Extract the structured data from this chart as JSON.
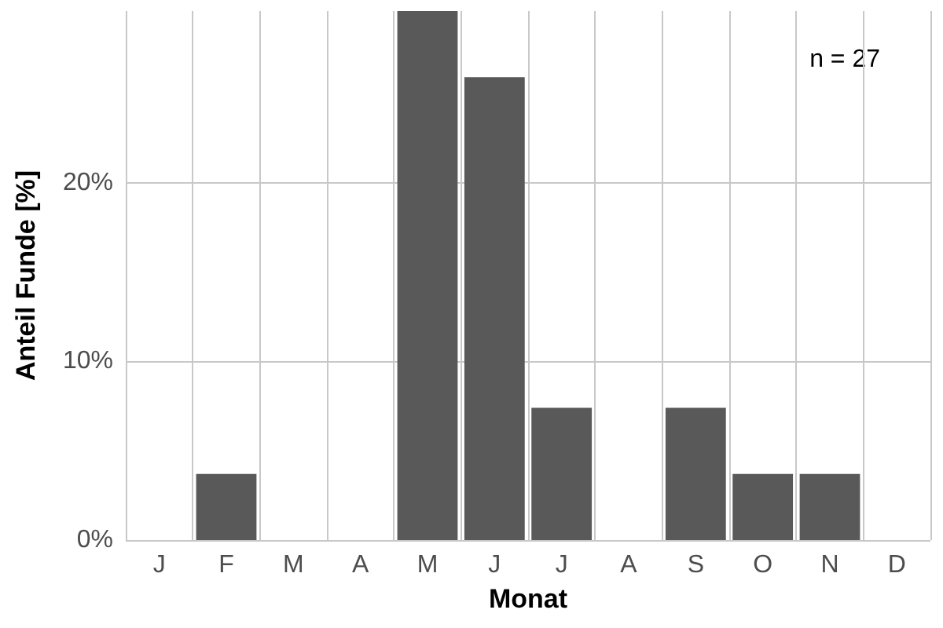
{
  "chart_data": {
    "type": "bar",
    "xlabel": "Monat",
    "ylabel": "Anteil Funde [%]",
    "categories": [
      "J",
      "F",
      "M",
      "A",
      "M",
      "J",
      "J",
      "A",
      "S",
      "O",
      "N",
      "D"
    ],
    "values": [
      0,
      3.7,
      0,
      0,
      29.6,
      25.9,
      7.4,
      0,
      7.4,
      3.7,
      3.7,
      0
    ],
    "color": "#595959",
    "ylim": [
      0,
      29.6
    ],
    "yticks": [
      {
        "value": 0,
        "label": "0%"
      },
      {
        "value": 10,
        "label": "10%"
      },
      {
        "value": 20,
        "label": "20%"
      }
    ],
    "grid": true,
    "annotations": [
      "n = 27"
    ]
  }
}
